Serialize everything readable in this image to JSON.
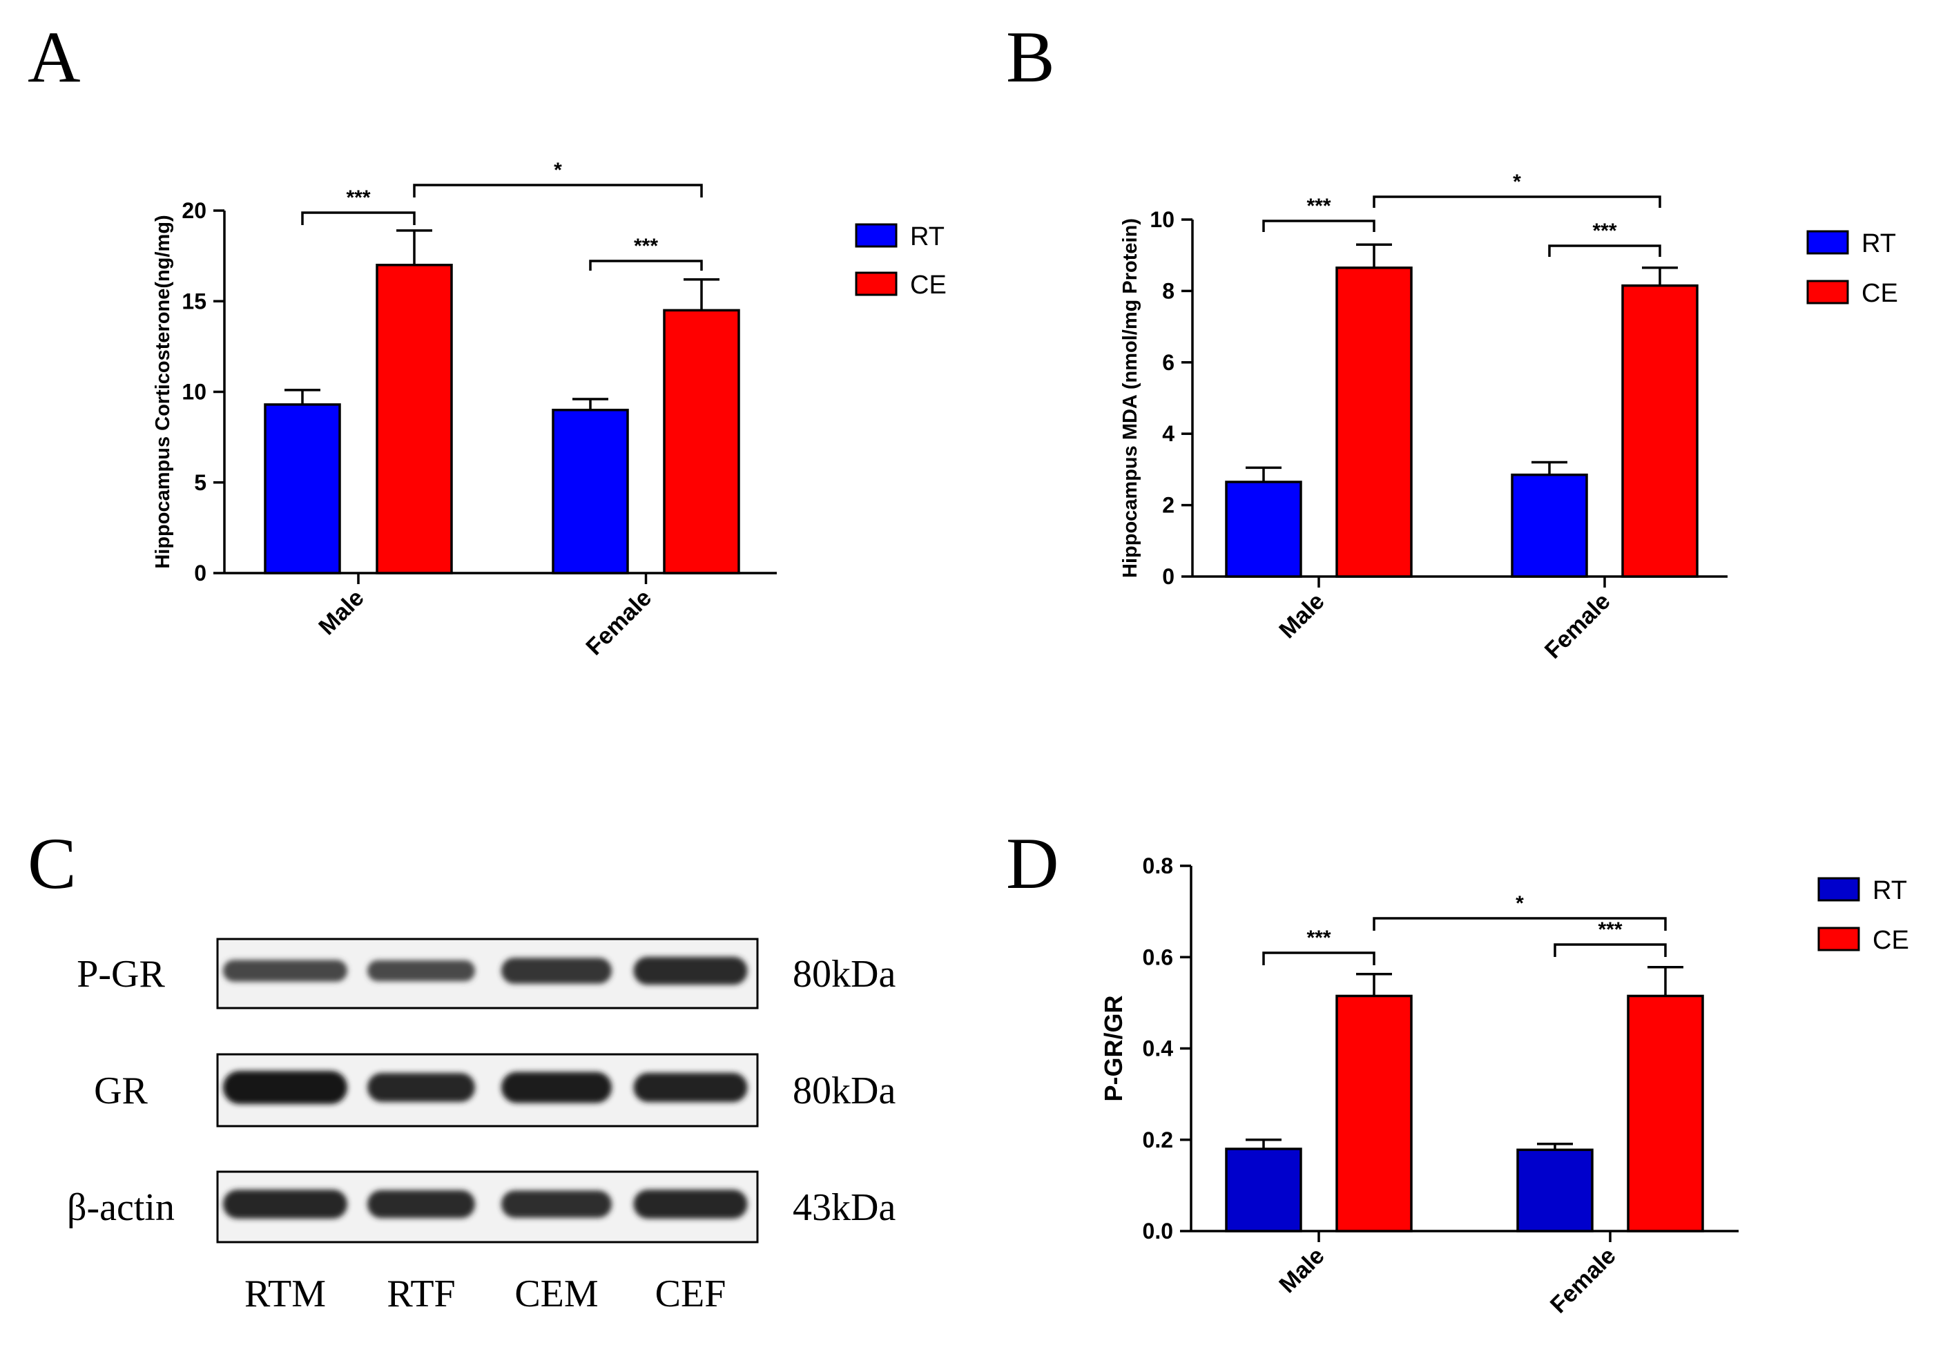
{
  "chart_data": [
    {
      "panel": "A",
      "type": "bar",
      "ylabel": "Hippocampus Corticosterone(ng/mg)",
      "ylim": [
        0,
        20
      ],
      "yticks": [
        "0",
        "5",
        "10",
        "15",
        "20"
      ],
      "categories": [
        "Male",
        "Female"
      ],
      "series": [
        {
          "name": "RT",
          "color": "#0000ff",
          "values": [
            9.3,
            9.0
          ],
          "errors": [
            0.8,
            0.6
          ]
        },
        {
          "name": "CE",
          "color": "#ff0000",
          "values": [
            17.0,
            14.5
          ],
          "errors": [
            1.9,
            1.7
          ]
        }
      ],
      "significance": [
        {
          "label": "***",
          "type": "Male RT vs Male CE"
        },
        {
          "label": "***",
          "type": "Female RT vs Female CE"
        },
        {
          "label": "*",
          "type": "Male CE vs Female CE"
        }
      ]
    },
    {
      "panel": "B",
      "type": "bar",
      "ylabel": "Hippocampus MDA (nmol/mg Protein)",
      "ylim": [
        0,
        10
      ],
      "yticks": [
        "0",
        "2",
        "4",
        "6",
        "8",
        "10"
      ],
      "categories": [
        "Male",
        "Female"
      ],
      "series": [
        {
          "name": "RT",
          "color": "#0000ff",
          "values": [
            2.65,
            2.85
          ],
          "errors": [
            0.4,
            0.35
          ]
        },
        {
          "name": "CE",
          "color": "#ff0000",
          "values": [
            8.65,
            8.15
          ],
          "errors": [
            0.65,
            0.5
          ]
        }
      ],
      "significance": [
        {
          "label": "***",
          "type": "Male RT vs Male CE"
        },
        {
          "label": "***",
          "type": "Female RT vs Female CE"
        },
        {
          "label": "*",
          "type": "Male CE vs Female CE"
        }
      ]
    },
    {
      "panel": "C",
      "type": "western-blot",
      "rows": [
        {
          "label": "P-GR",
          "size": "80kDa"
        },
        {
          "label": "GR",
          "size": "80kDa"
        },
        {
          "label": "β-actin",
          "size": "43kDa"
        }
      ],
      "lanes": [
        "RTM",
        "RTF",
        "CEM",
        "CEF"
      ],
      "band_intensity": [
        [
          0.45,
          0.42,
          0.65,
          0.75
        ],
        [
          1.0,
          0.8,
          0.9,
          0.82
        ],
        [
          0.8,
          0.75,
          0.72,
          0.8
        ]
      ]
    },
    {
      "panel": "D",
      "type": "bar",
      "ylabel": "P-GR/GR",
      "ylim": [
        0,
        0.8
      ],
      "yticks": [
        "0.0",
        "0.2",
        "0.4",
        "0.6",
        "0.8"
      ],
      "categories": [
        "Male",
        "Female"
      ],
      "series": [
        {
          "name": "RT",
          "color": "#0000cc",
          "values": [
            0.18,
            0.178
          ],
          "errors": [
            0.02,
            0.013
          ]
        },
        {
          "name": "CE",
          "color": "#ff0000",
          "values": [
            0.515,
            0.515
          ],
          "errors": [
            0.048,
            0.063
          ]
        }
      ],
      "significance": [
        {
          "label": "***",
          "type": "Male RT vs Male CE"
        },
        {
          "label": "***",
          "type": "Female RT vs Female CE"
        },
        {
          "label": "*",
          "type": "Male CE vs Female CE"
        }
      ]
    }
  ]
}
